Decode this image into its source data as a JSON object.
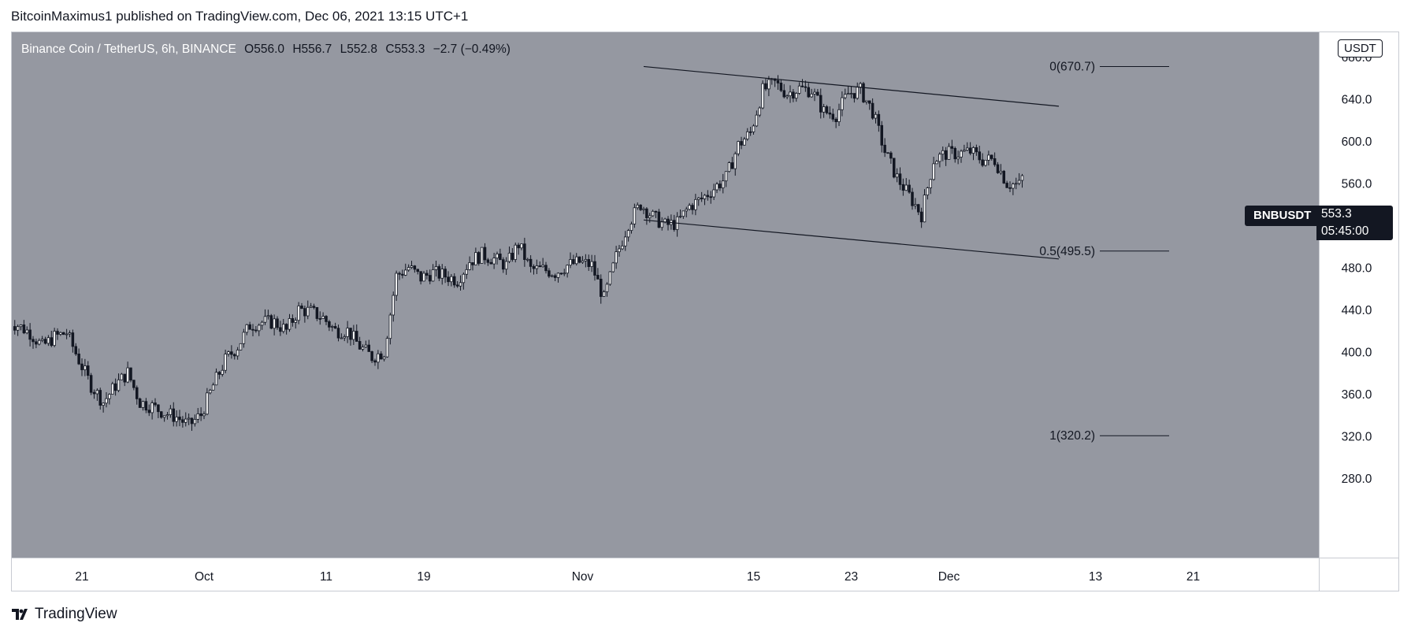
{
  "header": {
    "publisher_line": "BitcoinMaximus1 published on TradingView.com, Dec 06, 2021 13:15 UTC+1"
  },
  "legend": {
    "symbol_line": "Binance Coin / TetherUS, 6h, BINANCE",
    "o_label": "O",
    "o_value": "556.0",
    "h_label": "H",
    "h_value": "556.7",
    "l_label": "L",
    "l_value": "552.8",
    "c_label": "C",
    "c_value": "553.3",
    "change": "−2.7 (−0.49%)"
  },
  "price_scale": {
    "currency_label": "USDT",
    "ticks": [
      "680.0",
      "640.0",
      "600.0",
      "560.0",
      "520.0",
      "480.0",
      "440.0",
      "400.0",
      "360.0",
      "320.0",
      "280.0"
    ]
  },
  "badges": {
    "symbol": "BNBUSDT",
    "last_price": "553.3",
    "countdown": "05:45:00"
  },
  "time_scale": {
    "ticks": [
      "21",
      "Oct",
      "11",
      "19",
      "Nov",
      "15",
      "23",
      "Dec",
      "13",
      "21"
    ]
  },
  "fib_levels": [
    {
      "label": "0(670.7)",
      "price": 670.7
    },
    {
      "label": "0.5(495.5)",
      "price": 495.5
    },
    {
      "label": "1(320.2)",
      "price": 320.2
    }
  ],
  "footer": {
    "brand": "TradingView"
  },
  "colors": {
    "plot_bg": "#9598a1",
    "candle": "#131722",
    "text_dark": "#131722",
    "label_bg": "#131722"
  },
  "chart_data": {
    "type": "candlestick",
    "symbol": "BNBUSDT",
    "interval": "6h",
    "ylim": [
      265,
      690
    ],
    "x_axis_ticks": [
      {
        "label": "21",
        "date": "2021-09-21"
      },
      {
        "label": "Oct",
        "date": "2021-10-01"
      },
      {
        "label": "11",
        "date": "2021-10-11"
      },
      {
        "label": "19",
        "date": "2021-10-19"
      },
      {
        "label": "Nov",
        "date": "2021-11-01"
      },
      {
        "label": "15",
        "date": "2021-11-15"
      },
      {
        "label": "23",
        "date": "2021-11-23"
      },
      {
        "label": "Dec",
        "date": "2021-12-01"
      },
      {
        "label": "13",
        "date": "2021-12-13"
      },
      {
        "label": "21",
        "date": "2021-12-21"
      }
    ],
    "close_series": {
      "start": "2021-09-15",
      "step_days": 1,
      "values": [
        430,
        425,
        418,
        405,
        414,
        418,
        392,
        368,
        352,
        368,
        380,
        352,
        348,
        342,
        338,
        330,
        340,
        368,
        392,
        405,
        425,
        428,
        428,
        420,
        440,
        438,
        432,
        420,
        420,
        405,
        395,
        400,
        472,
        480,
        470,
        475,
        472,
        468,
        486,
        492,
        488,
        482,
        502,
        478,
        478,
        475,
        482,
        485,
        482,
        450,
        490,
        522,
        540,
        528,
        520,
        522,
        538,
        545,
        555,
        565,
        596,
        608,
        648,
        655,
        645,
        650,
        648,
        628,
        625,
        645,
        648,
        628,
        590,
        565,
        548,
        530,
        582,
        588,
        588,
        590,
        582,
        582,
        560,
        558,
        586,
        585,
        625,
        583,
        590,
        602,
        628,
        635,
        640,
        625,
        615,
        520,
        575,
        552
      ]
    },
    "trend_lines": [
      {
        "name": "upper-channel",
        "from": {
          "date": "2021-11-06",
          "price": 670.7
        },
        "to": {
          "date": "2021-12-10",
          "price": 633
        }
      },
      {
        "name": "lower-channel",
        "from": {
          "date": "2021-11-06",
          "price": 525
        },
        "to": {
          "date": "2021-12-10",
          "price": 488
        }
      }
    ],
    "last": {
      "open": 556.0,
      "high": 556.7,
      "low": 552.8,
      "close": 553.3,
      "change": -2.7,
      "change_pct": -0.49
    }
  }
}
